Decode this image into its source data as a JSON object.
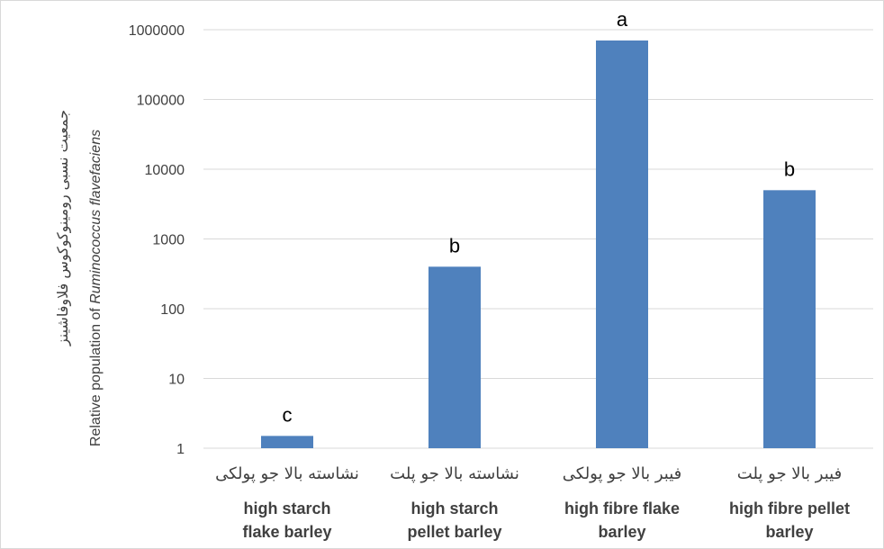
{
  "chart_data": {
    "type": "bar",
    "title": "",
    "ylabel_fa": "جمعیت نسبی رومینوکوکوس فلاوفاشینز",
    "ylabel_en_prefix": "Relative population of ",
    "ylabel_en_italic": "Ruminococcus flavefaciens",
    "y_scale": "log10",
    "ylim": [
      1,
      1000000
    ],
    "y_ticks": [
      1,
      10,
      100,
      1000,
      10000,
      100000,
      1000000
    ],
    "y_tick_labels": [
      "1",
      "10",
      "100",
      "1000",
      "10000",
      "100000",
      "1000000"
    ],
    "grid": true,
    "bar_color": "#4f81bd",
    "categories": [
      {
        "fa": "نشاسته بالا جو پولکی",
        "en_line1": "high starch",
        "en_line2": "flake barley"
      },
      {
        "fa": "نشاسته بالا جو پلت",
        "en_line1": "high starch",
        "en_line2": "pellet barley"
      },
      {
        "fa": "فیبر بالا جو پولکی",
        "en_line1": "high fibre  flake",
        "en_line2": "barley"
      },
      {
        "fa": "فیبر بالا جو پلت",
        "en_line1": "high fibre  pellet",
        "en_line2": "barley"
      }
    ],
    "values": [
      1.5,
      400,
      700000,
      5000
    ],
    "significance_letters": [
      "c",
      "b",
      "a",
      "b"
    ]
  }
}
